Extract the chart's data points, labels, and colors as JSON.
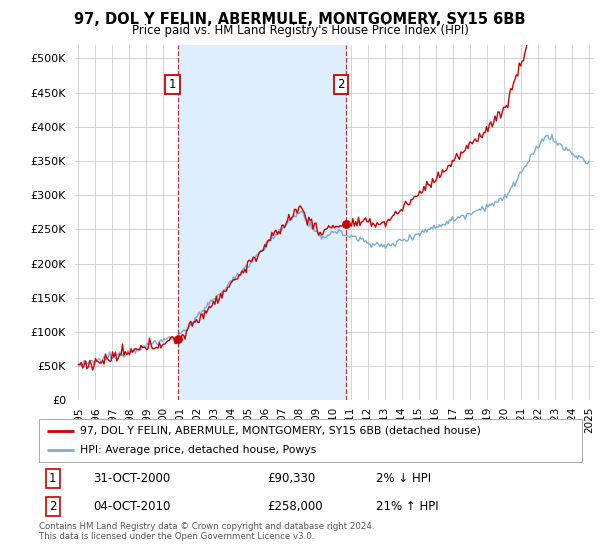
{
  "title": "97, DOL Y FELIN, ABERMULE, MONTGOMERY, SY15 6BB",
  "subtitle": "Price paid vs. HM Land Registry's House Price Index (HPI)",
  "property_line_color": "#cc0000",
  "hpi_line_color": "#7aadd4",
  "shade_color": "#ddeeff",
  "background_color": "#ffffff",
  "grid_color": "#cccccc",
  "ylim": [
    0,
    520000
  ],
  "yticks": [
    0,
    50000,
    100000,
    150000,
    200000,
    250000,
    300000,
    350000,
    400000,
    450000,
    500000
  ],
  "sale1_year": 2000.833,
  "sale1_price": 90330,
  "sale2_year": 2010.75,
  "sale2_price": 258000,
  "legend_property": "97, DOL Y FELIN, ABERMULE, MONTGOMERY, SY15 6BB (detached house)",
  "legend_hpi": "HPI: Average price, detached house, Powys",
  "footer": "Contains HM Land Registry data © Crown copyright and database right 2024.\nThis data is licensed under the Open Government Licence v3.0.",
  "ann1_date": "31-OCT-2000",
  "ann1_price": "£90,330",
  "ann1_pct": "2% ↓ HPI",
  "ann2_date": "04-OCT-2010",
  "ann2_price": "£258,000",
  "ann2_pct": "21% ↑ HPI",
  "xstart_year": 1995,
  "xend_year": 2025
}
